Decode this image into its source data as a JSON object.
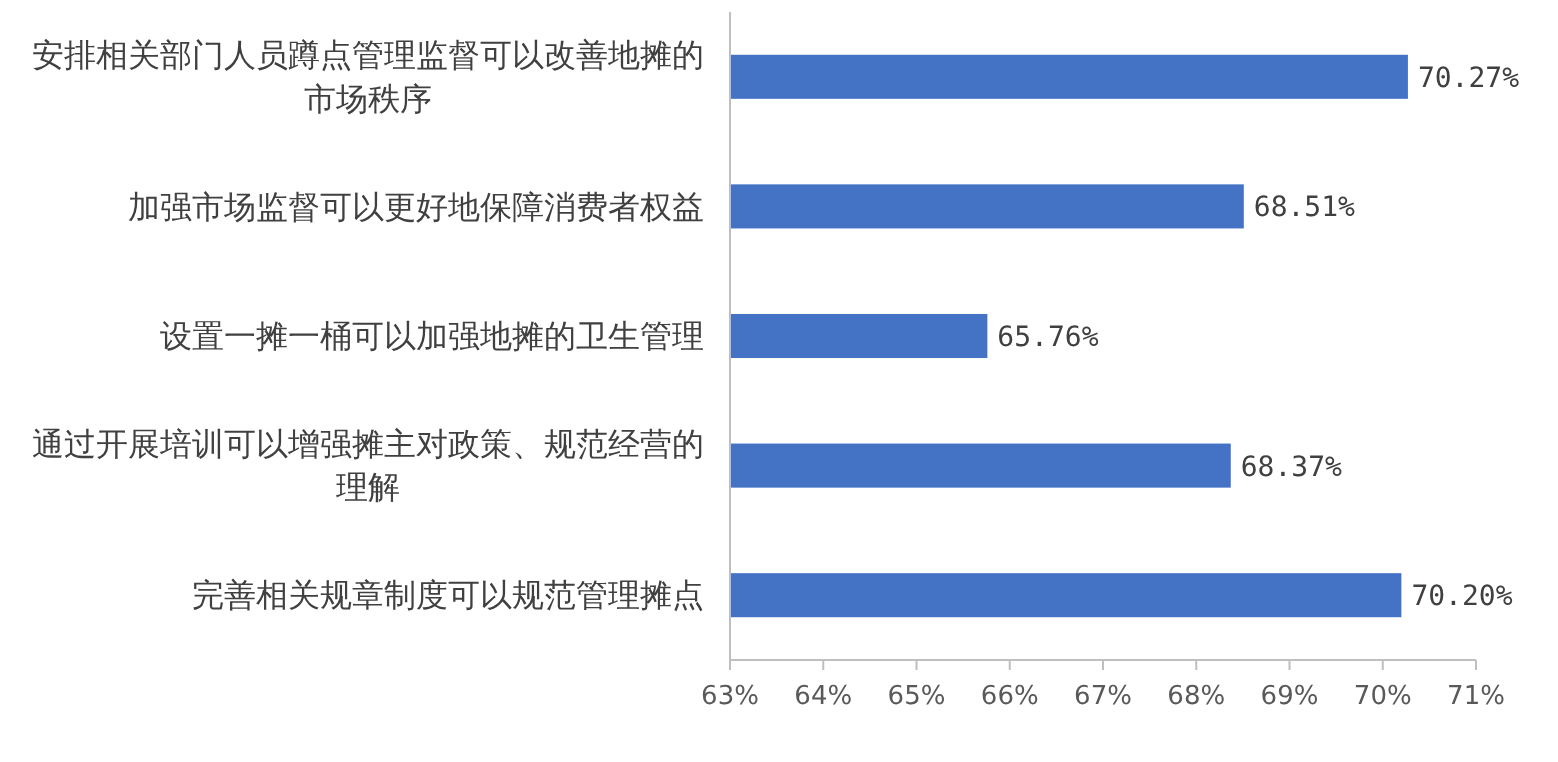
{
  "chart_data": {
    "type": "bar",
    "orientation": "horizontal",
    "categories": [
      "安排相关部门人员蹲点管理监督可以改善地摊的市场秩序",
      "加强市场监督可以更好地保障消费者权益",
      "设置一摊一桶可以加强地摊的卫生管理",
      "通过开展培训可以增强摊主对政策、规范经营的理解",
      "完善相关规章制度可以规范管理摊点"
    ],
    "values": [
      70.27,
      68.51,
      65.76,
      68.37,
      70.2
    ],
    "value_labels": [
      "70.27%",
      "68.51%",
      "65.76%",
      "68.37%",
      "70.20%"
    ],
    "color": "#4472c4",
    "xlim": [
      63,
      71
    ],
    "xticks": [
      {
        "value": 63,
        "label": "63%"
      },
      {
        "value": 64,
        "label": "64%"
      },
      {
        "value": 65,
        "label": "65%"
      },
      {
        "value": 66,
        "label": "66%"
      },
      {
        "value": 67,
        "label": "67%"
      },
      {
        "value": 68,
        "label": "68%"
      },
      {
        "value": 69,
        "label": "69%"
      },
      {
        "value": 70,
        "label": "70%"
      },
      {
        "value": 71,
        "label": "71%"
      }
    ]
  }
}
